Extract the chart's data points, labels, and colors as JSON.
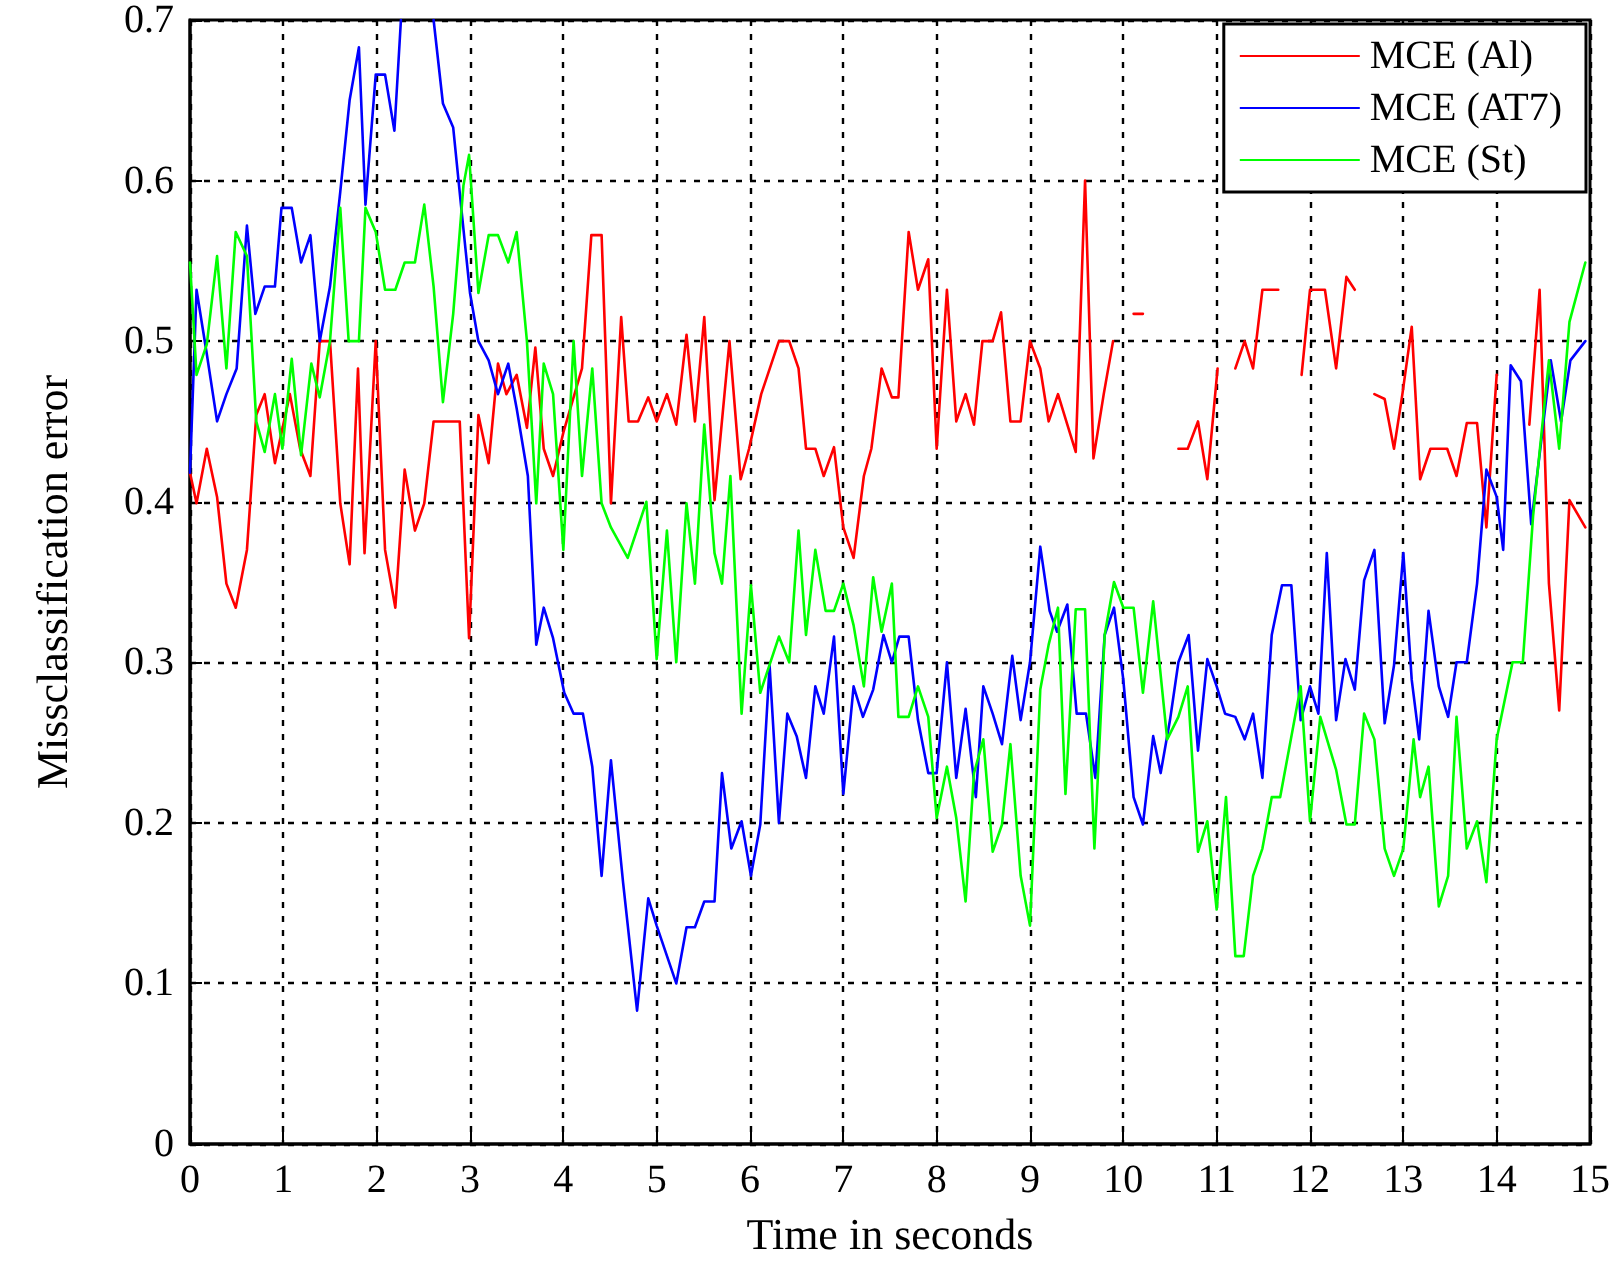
{
  "chart_data": {
    "type": "line",
    "xlabel": "Time in seconds",
    "ylabel": "Missclassification error",
    "xlim": [
      0,
      15
    ],
    "ylim": [
      0,
      0.7
    ],
    "xticks": [
      0,
      1,
      2,
      3,
      4,
      5,
      6,
      7,
      8,
      9,
      10,
      11,
      12,
      13,
      14,
      15
    ],
    "yticks": [
      0,
      0.1,
      0.2,
      0.3,
      0.4,
      0.5,
      0.6,
      0.7
    ],
    "grid": true,
    "legend": "top right",
    "marker": "none",
    "line_style": "solid",
    "series": [
      {
        "name": "MCE (Al)",
        "color": "#ff0000",
        "x": [
          0,
          0.07,
          0.18,
          0.29,
          0.39,
          0.49,
          0.61,
          0.71,
          0.8,
          0.91,
          1.07,
          1.18,
          1.29,
          1.39,
          1.5,
          1.61,
          1.71,
          1.8,
          1.87,
          1.99,
          2.09,
          2.2,
          2.3,
          2.41,
          2.51,
          2.61,
          2.89,
          2.99,
          3.09,
          3.2,
          3.3,
          3.39,
          3.5,
          3.61,
          3.7,
          3.79,
          3.89,
          4.0,
          4.2,
          4.3,
          4.41,
          4.51,
          4.62,
          4.7,
          4.8,
          4.91,
          5.0,
          5.11,
          5.21,
          5.32,
          5.41,
          5.51,
          5.62,
          5.78,
          5.9,
          5.99,
          6.12,
          6.31,
          6.42,
          6.52,
          6.6,
          6.7,
          6.79,
          6.9,
          7.0,
          7.11,
          7.22,
          7.3,
          7.41,
          7.52,
          7.59,
          7.7,
          7.8,
          7.91,
          8.0,
          8.11,
          8.21,
          8.31,
          8.4,
          8.49,
          8.6,
          8.69,
          8.79,
          8.9,
          9.0,
          9.11,
          9.2,
          9.3,
          9.4,
          9.49,
          9.59,
          9.68,
          9.79,
          9.89,
          10.0,
          10.11,
          10.21,
          10.32,
          10.59,
          10.69,
          10.8,
          10.9,
          11.01,
          11.1,
          11.2,
          11.3,
          11.39,
          11.49,
          11.66,
          11.8,
          11.91,
          12.0,
          12.16,
          12.28,
          12.39,
          12.48,
          12.58,
          12.69,
          12.8,
          12.9,
          12.99,
          13.09,
          13.18,
          13.29,
          13.47,
          13.57,
          13.68,
          13.79,
          13.89,
          14.0,
          14.14,
          14.35,
          14.46,
          14.56,
          14.67,
          14.78,
          14.95
        ],
        "values": [
          0.418,
          0.399,
          0.433,
          0.403,
          0.349,
          0.334,
          0.37,
          0.454,
          0.467,
          0.424,
          0.467,
          0.433,
          0.416,
          0.5,
          0.5,
          0.399,
          0.361,
          0.483,
          0.368,
          0.5,
          0.37,
          0.334,
          0.42,
          0.382,
          0.399,
          0.45,
          0.45,
          0.315,
          0.454,
          0.424,
          0.486,
          0.467,
          0.479,
          0.446,
          0.496,
          0.433,
          0.416,
          0.443,
          0.483,
          0.566,
          0.566,
          0.399,
          0.515,
          0.45,
          0.45,
          0.465,
          0.45,
          0.467,
          0.448,
          0.504,
          0.45,
          0.515,
          0.401,
          0.5,
          0.414,
          0.433,
          0.467,
          0.5,
          0.5,
          0.483,
          0.433,
          0.433,
          0.416,
          0.434,
          0.384,
          0.365,
          0.416,
          0.433,
          0.483,
          0.465,
          0.465,
          0.568,
          0.532,
          0.551,
          0.433,
          0.532,
          0.45,
          0.467,
          0.448,
          0.5,
          0.5,
          0.518,
          0.45,
          0.45,
          0.5,
          0.483,
          0.45,
          0.467,
          0.448,
          0.431,
          0.6,
          0.427,
          0.467,
          0.5,
          null,
          0.517,
          0.517,
          null,
          0.433,
          0.433,
          0.45,
          0.414,
          0.483,
          null,
          0.483,
          0.5,
          0.483,
          0.532,
          0.532,
          null,
          0.479,
          0.532,
          0.532,
          0.483,
          0.54,
          0.532,
          null,
          0.467,
          0.464,
          0.433,
          0.467,
          0.509,
          0.414,
          0.433,
          0.433,
          0.416,
          0.449,
          0.449,
          0.384,
          0.479,
          null,
          0.448,
          0.532,
          0.349,
          0.27,
          0.401,
          0.384
        ]
      },
      {
        "name": "MCE (AT7)",
        "color": "#0000ff",
        "x": [
          0,
          0.07,
          0.18,
          0.29,
          0.39,
          0.5,
          0.61,
          0.7,
          0.8,
          0.91,
          0.98,
          1.09,
          1.19,
          1.29,
          1.39,
          1.5,
          1.61,
          1.71,
          1.81,
          1.88,
          1.99,
          2.09,
          2.19,
          2.26,
          2.45,
          2.61,
          2.71,
          2.82,
          2.91,
          3.0,
          3.09,
          3.2,
          3.3,
          3.41,
          3.5,
          3.62,
          3.71,
          3.79,
          3.89,
          4.01,
          4.11,
          4.21,
          4.31,
          4.41,
          4.51,
          4.64,
          4.79,
          4.91,
          5.0,
          5.21,
          5.32,
          5.41,
          5.51,
          5.62,
          5.7,
          5.8,
          5.91,
          6.01,
          6.11,
          6.21,
          6.31,
          6.4,
          6.5,
          6.6,
          6.7,
          6.79,
          6.9,
          7.0,
          7.11,
          7.21,
          7.32,
          7.43,
          7.52,
          7.6,
          7.7,
          7.8,
          7.91,
          8.0,
          8.11,
          8.21,
          8.31,
          8.42,
          8.5,
          8.6,
          8.7,
          8.81,
          8.9,
          9.0,
          9.11,
          9.21,
          9.29,
          9.4,
          9.5,
          9.6,
          9.7,
          9.8,
          9.9,
          10.0,
          10.11,
          10.21,
          10.32,
          10.4,
          10.5,
          10.59,
          10.7,
          10.8,
          10.9,
          11.0,
          11.09,
          11.2,
          11.3,
          11.39,
          11.49,
          11.59,
          11.7,
          11.8,
          11.9,
          12.0,
          12.09,
          12.18,
          12.28,
          12.38,
          12.48,
          12.58,
          12.69,
          12.8,
          12.9,
          13.0,
          13.09,
          13.17,
          13.27,
          13.38,
          13.48,
          13.57,
          13.68,
          13.79,
          13.89,
          14.0,
          14.07,
          14.15,
          14.26,
          14.37,
          14.48,
          14.58,
          14.69,
          14.79,
          14.95
        ],
        "values": [
          0.418,
          0.532,
          0.492,
          0.45,
          0.467,
          0.483,
          0.572,
          0.517,
          0.534,
          0.534,
          0.583,
          0.583,
          0.549,
          0.566,
          0.5,
          0.534,
          0.593,
          0.65,
          0.683,
          0.585,
          0.666,
          0.666,
          0.631,
          0.7,
          null,
          0.7,
          0.648,
          0.633,
          0.581,
          0.53,
          0.5,
          0.488,
          0.467,
          0.486,
          0.458,
          0.416,
          0.311,
          0.334,
          0.315,
          0.281,
          0.268,
          0.268,
          0.235,
          0.167,
          0.239,
          0.163,
          0.083,
          0.153,
          0.136,
          0.1,
          0.135,
          0.135,
          0.151,
          0.151,
          0.231,
          0.184,
          0.201,
          0.167,
          0.199,
          0.298,
          0.2,
          0.268,
          0.254,
          0.228,
          0.285,
          0.268,
          0.316,
          0.218,
          0.285,
          0.266,
          0.283,
          0.317,
          0.3,
          0.316,
          0.316,
          0.264,
          0.231,
          0.231,
          0.3,
          0.228,
          0.271,
          0.216,
          0.285,
          0.268,
          0.249,
          0.304,
          0.264,
          0.3,
          0.372,
          0.332,
          0.319,
          0.336,
          0.268,
          0.268,
          0.228,
          0.317,
          0.334,
          0.289,
          0.216,
          0.199,
          0.254,
          0.231,
          0.264,
          0.3,
          0.317,
          0.245,
          0.302,
          0.285,
          0.268,
          0.266,
          0.252,
          0.268,
          0.228,
          0.317,
          0.348,
          0.348,
          0.264,
          0.285,
          0.268,
          0.368,
          0.264,
          0.302,
          0.283,
          0.351,
          0.37,
          0.262,
          0.298,
          0.368,
          0.289,
          0.252,
          0.332,
          0.285,
          0.266,
          0.3,
          0.3,
          0.349,
          0.42,
          0.403,
          0.37,
          0.485,
          0.475,
          0.386,
          0.439,
          0.488,
          0.45,
          0.488,
          0.5
        ]
      },
      {
        "name": "MCE (St)",
        "color": "#00ff00",
        "x": [
          0,
          0.07,
          0.18,
          0.29,
          0.39,
          0.49,
          0.61,
          0.71,
          0.8,
          0.91,
          0.99,
          1.09,
          1.19,
          1.3,
          1.39,
          1.5,
          1.61,
          1.7,
          1.81,
          1.88,
          1.99,
          2.09,
          2.2,
          2.3,
          2.41,
          2.51,
          2.61,
          2.71,
          2.82,
          2.93,
          2.99,
          3.09,
          3.2,
          3.3,
          3.41,
          3.5,
          3.61,
          3.71,
          3.79,
          3.89,
          4.0,
          4.11,
          4.2,
          4.31,
          4.41,
          4.51,
          4.69,
          4.89,
          5.0,
          5.11,
          5.21,
          5.32,
          5.41,
          5.51,
          5.62,
          5.7,
          5.79,
          5.91,
          6.01,
          6.11,
          6.31,
          6.42,
          6.52,
          6.6,
          6.7,
          6.81,
          6.9,
          7.0,
          7.11,
          7.22,
          7.32,
          7.41,
          7.52,
          7.59,
          7.7,
          7.8,
          7.91,
          8.0,
          8.11,
          8.21,
          8.31,
          8.4,
          8.5,
          8.6,
          8.7,
          8.79,
          8.9,
          9.0,
          9.11,
          9.2,
          9.3,
          9.38,
          9.49,
          9.59,
          9.69,
          9.8,
          9.9,
          10.0,
          10.11,
          10.21,
          10.32,
          10.47,
          10.59,
          10.69,
          10.8,
          10.9,
          11.0,
          11.1,
          11.2,
          11.29,
          11.39,
          11.49,
          11.59,
          11.68,
          11.9,
          12.0,
          12.11,
          12.28,
          12.39,
          12.48,
          12.58,
          12.69,
          12.8,
          12.9,
          13.0,
          13.11,
          13.18,
          13.27,
          13.38,
          13.48,
          13.57,
          13.68,
          13.79,
          13.89,
          14.0,
          14.17,
          14.28,
          14.39,
          14.56,
          14.67,
          14.78,
          14.95
        ],
        "values": [
          0.549,
          0.479,
          0.498,
          0.553,
          0.483,
          0.568,
          0.553,
          0.45,
          0.431,
          0.467,
          0.433,
          0.489,
          0.429,
          0.486,
          0.465,
          0.5,
          0.583,
          0.5,
          0.5,
          0.583,
          0.568,
          0.532,
          0.532,
          0.549,
          0.549,
          0.585,
          0.534,
          0.462,
          0.517,
          0.597,
          0.616,
          0.53,
          0.566,
          0.566,
          0.549,
          0.568,
          0.5,
          0.399,
          0.486,
          0.467,
          0.37,
          0.5,
          0.416,
          0.483,
          0.399,
          0.384,
          0.365,
          0.4,
          0.302,
          0.382,
          0.3,
          0.399,
          0.349,
          0.448,
          0.368,
          0.349,
          0.416,
          0.268,
          0.348,
          0.281,
          0.316,
          0.3,
          0.382,
          0.317,
          0.37,
          0.332,
          0.332,
          0.349,
          0.323,
          0.285,
          0.353,
          0.319,
          0.349,
          0.266,
          0.266,
          0.285,
          0.266,
          0.203,
          0.235,
          0.203,
          0.151,
          0.231,
          0.252,
          0.182,
          0.199,
          0.249,
          0.167,
          0.136,
          0.283,
          0.311,
          0.334,
          0.218,
          0.333,
          0.333,
          0.184,
          0.317,
          0.35,
          0.334,
          0.334,
          0.281,
          0.338,
          0.252,
          0.266,
          0.285,
          0.182,
          0.201,
          0.146,
          0.216,
          0.117,
          0.117,
          0.167,
          0.184,
          0.216,
          0.216,
          0.285,
          0.201,
          0.266,
          0.233,
          0.199,
          0.199,
          0.268,
          0.252,
          0.184,
          0.167,
          0.184,
          0.252,
          0.216,
          0.235,
          0.148,
          0.167,
          0.266,
          0.184,
          0.201,
          0.163,
          0.252,
          0.3,
          0.3,
          0.391,
          0.488,
          0.433,
          0.512,
          0.549
        ]
      }
    ]
  }
}
